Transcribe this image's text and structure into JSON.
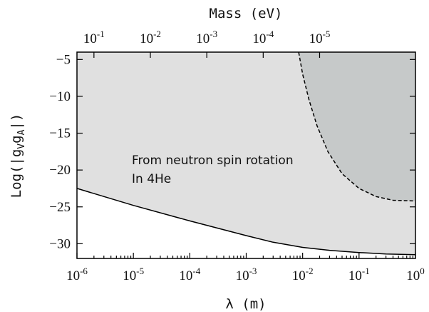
{
  "chart_data": {
    "type": "area",
    "title": "",
    "xlabel": "λ (m)",
    "x2label": "Mass (eV)",
    "ylabel": "Log(|g",
    "ylabel_sub1": "V",
    "ylabel_mid": "g",
    "ylabel_sub2": "A",
    "ylabel_end": "|)",
    "xscale": "log",
    "xlim": [
      1e-06,
      1
    ],
    "ylim": [
      -32,
      -4
    ],
    "x_ticks": [
      {
        "value": 1e-06,
        "base": "10",
        "exp": "-6"
      },
      {
        "value": 1e-05,
        "base": "10",
        "exp": "-5"
      },
      {
        "value": 0.0001,
        "base": "10",
        "exp": "-4"
      },
      {
        "value": 0.001,
        "base": "10",
        "exp": "-3"
      },
      {
        "value": 0.01,
        "base": "10",
        "exp": "-2"
      },
      {
        "value": 0.1,
        "base": "10",
        "exp": "-1"
      },
      {
        "value": 1,
        "base": "10",
        "exp": "0"
      }
    ],
    "x2_ticks": [
      {
        "value": 0.1,
        "base": "10",
        "exp": "-1"
      },
      {
        "value": 0.01,
        "base": "10",
        "exp": "-2"
      },
      {
        "value": 0.001,
        "base": "10",
        "exp": "-3"
      },
      {
        "value": 0.0001,
        "base": "10",
        "exp": "-4"
      },
      {
        "value": 1e-05,
        "base": "10",
        "exp": "-5"
      }
    ],
    "x2_positions_lambda": [
      2e-06,
      2e-05,
      0.0002,
      0.002,
      0.02
    ],
    "y_ticks": [
      -5,
      -10,
      -15,
      -20,
      -25,
      -30
    ],
    "series": [
      {
        "style": "solid",
        "fill": "#e0e0e0",
        "points": [
          {
            "x": 1e-06,
            "y": -22.5
          },
          {
            "x": 1e-05,
            "y": -24.8
          },
          {
            "x": 0.0001,
            "y": -26.9
          },
          {
            "x": 0.001,
            "y": -28.9
          },
          {
            "x": 0.003,
            "y": -29.8
          },
          {
            "x": 0.01,
            "y": -30.5
          },
          {
            "x": 0.03,
            "y": -30.9
          },
          {
            "x": 0.1,
            "y": -31.2
          },
          {
            "x": 0.3,
            "y": -31.4
          },
          {
            "x": 1,
            "y": -31.5
          }
        ]
      },
      {
        "style": "dashed",
        "fill": "#c6c9c9",
        "points": [
          {
            "x": 0.0085,
            "y": -4
          },
          {
            "x": 0.01,
            "y": -7.0
          },
          {
            "x": 0.013,
            "y": -10.5
          },
          {
            "x": 0.018,
            "y": -14.0
          },
          {
            "x": 0.028,
            "y": -17.5
          },
          {
            "x": 0.05,
            "y": -20.5
          },
          {
            "x": 0.1,
            "y": -22.5
          },
          {
            "x": 0.2,
            "y": -23.6
          },
          {
            "x": 0.4,
            "y": -24.1
          },
          {
            "x": 1,
            "y": -24.2
          }
        ]
      }
    ],
    "annotations": [
      "From neutron spin rotation",
      "In 4He"
    ],
    "grid": false,
    "legend": "none"
  }
}
